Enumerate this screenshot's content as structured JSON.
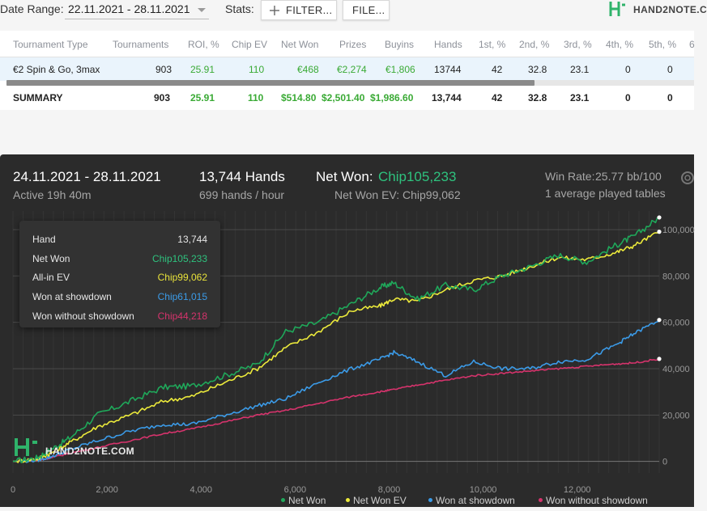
{
  "filters": {
    "date_range_label": "Date Range:",
    "date_range_value": "22.11.2021 - 28.11.2021",
    "stats_label": "Stats:",
    "filter_button": "FILTER...",
    "file_button": "FILE..."
  },
  "logo_text": "HAND2NOTE.C",
  "table": {
    "headers": [
      "Tournament Type",
      "Tournaments",
      "ROI, %",
      "Chip EV",
      "Net Won",
      "Prizes",
      "Buyins",
      "Hands",
      "1st, %",
      "2nd, %",
      "3rd, %",
      "4th, %",
      "5th, %",
      "6"
    ],
    "row": [
      "€2 Spin & Go, 3max",
      "903",
      "25.91",
      "110",
      "€468",
      "€2,274",
      "€1,806",
      "13744",
      "42",
      "32.8",
      "23.1",
      "0",
      "0",
      ""
    ],
    "summary": [
      "SUMMARY",
      "903",
      "25.91",
      "110",
      "$514.80",
      "$2,501.40",
      "$1,986.60",
      "13,744",
      "42",
      "32.8",
      "23.1",
      "0",
      "0",
      ""
    ]
  },
  "graph_header": {
    "range": "24.11.2021 - 28.11.2021",
    "active": "Active 19h 40m",
    "hands": "13,744 Hands",
    "hands_per_hour": "699 hands / hour",
    "net_won_label": "Net Won:",
    "net_won_value": "Chip105,233",
    "net_won_ev_label": "Net Won  EV:",
    "net_won_ev_value": "Chip99,062",
    "win_rate_label": "Win Rate:",
    "win_rate_value": "25.77",
    "win_rate_unit": "bb/100",
    "tables_text": "1 average played tables"
  },
  "tooltip": {
    "rows": [
      {
        "label": "Hand",
        "value": "13,744",
        "color": "#e6e6e6"
      },
      {
        "label": "Net Won",
        "value": "Chip105,233",
        "color": "#2ec27e"
      },
      {
        "label": "All-in EV",
        "value": "Chip99,062",
        "color": "#e8e23a"
      },
      {
        "label": "Won at showdown",
        "value": "Chip61,015",
        "color": "#3b9be8"
      },
      {
        "label": "Won without showdown",
        "value": "Chip44,218",
        "color": "#d6336c"
      }
    ]
  },
  "watermark": "HAND2NOTE.COM",
  "chart_data": {
    "type": "line",
    "x_ticks": [
      "0",
      "2,000",
      "4,000",
      "6,000",
      "8,000",
      "10,000",
      "12,000"
    ],
    "y_ticks": [
      "0",
      "20,000",
      "40,000",
      "60,000",
      "80,000",
      "100,000"
    ],
    "xlim": [
      0,
      13744
    ],
    "ylim": [
      -5000,
      108000
    ],
    "grid": true,
    "legend": "bottom",
    "series": [
      {
        "name": "Net Won",
        "color": "#1fa85a",
        "x": [
          0,
          500,
          800,
          1200,
          1800,
          2500,
          3200,
          3800,
          4500,
          5200,
          5800,
          6500,
          7200,
          7800,
          8100,
          8600,
          9200,
          9800,
          10400,
          11000,
          11600,
          12200,
          12800,
          13200,
          13744
        ],
        "values": [
          0,
          1500,
          5000,
          10000,
          20000,
          26000,
          32000,
          32500,
          37000,
          42000,
          56000,
          60000,
          68000,
          75000,
          77000,
          70000,
          76000,
          74000,
          80000,
          84000,
          89000,
          86000,
          93000,
          97000,
          105233
        ]
      },
      {
        "name": "Net Won  EV",
        "color": "#ecea3b",
        "x": [
          0,
          500,
          800,
          1200,
          1800,
          2500,
          3200,
          3800,
          4500,
          5200,
          5800,
          6500,
          7200,
          7800,
          8100,
          8600,
          9200,
          9800,
          10400,
          11000,
          11600,
          12200,
          12800,
          13200,
          13744
        ],
        "values": [
          0,
          1000,
          3500,
          8000,
          15000,
          20000,
          26000,
          28000,
          34000,
          40000,
          49000,
          56000,
          65000,
          67000,
          70000,
          69000,
          74000,
          78000,
          80000,
          84000,
          88000,
          87000,
          90000,
          93000,
          99062
        ]
      },
      {
        "name": "Won at showdown",
        "color": "#3b9be8",
        "x": [
          0,
          500,
          800,
          1200,
          1800,
          2500,
          3200,
          3800,
          4500,
          5200,
          5800,
          6500,
          7200,
          7800,
          8100,
          8600,
          9200,
          9800,
          10400,
          11000,
          11600,
          12200,
          12800,
          13200,
          13744
        ],
        "values": [
          0,
          500,
          2000,
          5000,
          9000,
          13000,
          16000,
          16000,
          20000,
          24000,
          27000,
          34000,
          40000,
          44000,
          47000,
          43000,
          37000,
          43000,
          40000,
          40000,
          43000,
          44000,
          50000,
          55000,
          61015
        ]
      },
      {
        "name": "Won without showdown",
        "color": "#d6336c",
        "x": [
          0,
          500,
          800,
          1200,
          1800,
          2500,
          3200,
          3800,
          4500,
          5200,
          5800,
          6500,
          7200,
          7800,
          8100,
          8600,
          9200,
          9800,
          10400,
          11000,
          11600,
          12200,
          12800,
          13200,
          13744
        ],
        "values": [
          0,
          400,
          1500,
          3500,
          6000,
          9000,
          12000,
          14000,
          17000,
          20000,
          22000,
          25000,
          28000,
          30000,
          31000,
          33000,
          35000,
          37000,
          38000,
          39000,
          40000,
          41000,
          42000,
          42500,
          44218
        ]
      }
    ]
  }
}
